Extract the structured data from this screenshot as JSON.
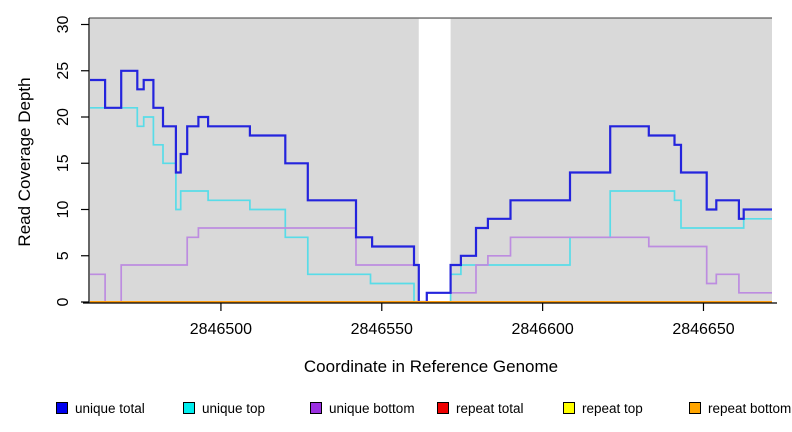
{
  "chart_data": {
    "type": "line",
    "subtype": "step",
    "title": "",
    "xlabel": "Coordinate in Reference Genome",
    "ylabel": "Read Coverage Depth",
    "xlim": [
      2846459.3,
      2846671.3
    ],
    "ylim": [
      0,
      30
    ],
    "x_ticks": [
      2846500,
      2846550,
      2846600,
      2846650
    ],
    "y_ticks": [
      0,
      5,
      10,
      15,
      20,
      25,
      30
    ],
    "grid": false,
    "plot_bg_color": "#d9d9d9",
    "page_bg_color": "#ffffff",
    "axis_color": "#000000",
    "gap_region": {
      "x0": 2846561.5,
      "x1": 2846571.4,
      "color": "#ffffff"
    },
    "series": [
      {
        "name": "unique top",
        "color": "#58dce8",
        "width": 1.7,
        "points": [
          [
            2846459.3,
            21
          ],
          [
            2846474,
            19
          ],
          [
            2846476,
            20
          ],
          [
            2846479,
            17
          ],
          [
            2846482,
            15
          ],
          [
            2846486,
            10
          ],
          [
            2846487.5,
            12
          ],
          [
            2846496,
            11
          ],
          [
            2846509,
            10
          ],
          [
            2846520,
            7
          ],
          [
            2846527,
            3
          ],
          [
            2846546.5,
            2
          ],
          [
            2846560,
            0
          ],
          [
            2846571.4,
            3
          ],
          [
            2846574.6,
            4
          ],
          [
            2846608.5,
            7
          ],
          [
            2846621,
            12
          ],
          [
            2846641,
            11
          ],
          [
            2846643,
            8
          ],
          [
            2846662.5,
            9
          ]
        ]
      },
      {
        "name": "unique bottom",
        "color": "#bd8ce0",
        "width": 1.7,
        "points": [
          [
            2846459.3,
            3
          ],
          [
            2846464,
            0
          ],
          [
            2846469,
            4
          ],
          [
            2846489.5,
            7
          ],
          [
            2846493,
            8
          ],
          [
            2846542,
            4
          ],
          [
            2846561.5,
            0
          ],
          [
            2846564,
            1
          ],
          [
            2846579.3,
            4
          ],
          [
            2846583,
            5
          ],
          [
            2846590,
            7
          ],
          [
            2846633,
            6
          ],
          [
            2846651,
            2
          ],
          [
            2846654,
            3
          ],
          [
            2846661,
            1
          ]
        ]
      },
      {
        "name": "unique total",
        "color": "#2424dd",
        "width": 2.2,
        "points": [
          [
            2846459.3,
            24
          ],
          [
            2846464,
            21
          ],
          [
            2846469,
            25
          ],
          [
            2846474,
            23
          ],
          [
            2846476,
            24
          ],
          [
            2846479,
            21
          ],
          [
            2846482,
            19
          ],
          [
            2846486,
            14
          ],
          [
            2846487.5,
            16
          ],
          [
            2846489.5,
            19
          ],
          [
            2846493,
            20
          ],
          [
            2846496,
            19
          ],
          [
            2846509,
            18
          ],
          [
            2846520,
            15
          ],
          [
            2846527,
            11
          ],
          [
            2846542,
            7
          ],
          [
            2846547,
            6
          ],
          [
            2846560,
            4
          ],
          [
            2846561.5,
            0
          ],
          [
            2846564,
            1
          ],
          [
            2846571.4,
            4
          ],
          [
            2846574.6,
            5
          ],
          [
            2846579.3,
            8
          ],
          [
            2846583,
            9
          ],
          [
            2846590,
            11
          ],
          [
            2846608.5,
            14
          ],
          [
            2846621,
            19
          ],
          [
            2846633,
            18
          ],
          [
            2846641,
            17
          ],
          [
            2846643,
            14
          ],
          [
            2846651,
            10
          ],
          [
            2846654,
            11
          ],
          [
            2846661,
            9
          ],
          [
            2846662.5,
            10
          ]
        ]
      },
      {
        "name": "repeat total",
        "color": "#e00000",
        "width": 1.7,
        "points": [
          [
            2846459.3,
            0
          ]
        ]
      },
      {
        "name": "repeat top",
        "color": "#ffff00",
        "width": 1.7,
        "points": [
          [
            2846459.3,
            0
          ]
        ]
      },
      {
        "name": "repeat bottom",
        "color": "#ff9d0c",
        "width": 2,
        "points": [
          [
            2846459.3,
            0
          ]
        ]
      }
    ],
    "legend": {
      "position": "bottom",
      "items": [
        {
          "label": "unique total",
          "color": "#0000ee"
        },
        {
          "label": "unique top",
          "color": "#00eeee"
        },
        {
          "label": "unique bottom",
          "color": "#9b30e0"
        },
        {
          "label": "repeat total",
          "color": "#ee0000"
        },
        {
          "label": "repeat top",
          "color": "#ffff00"
        },
        {
          "label": "repeat bottom",
          "color": "#ffa500"
        }
      ]
    }
  }
}
